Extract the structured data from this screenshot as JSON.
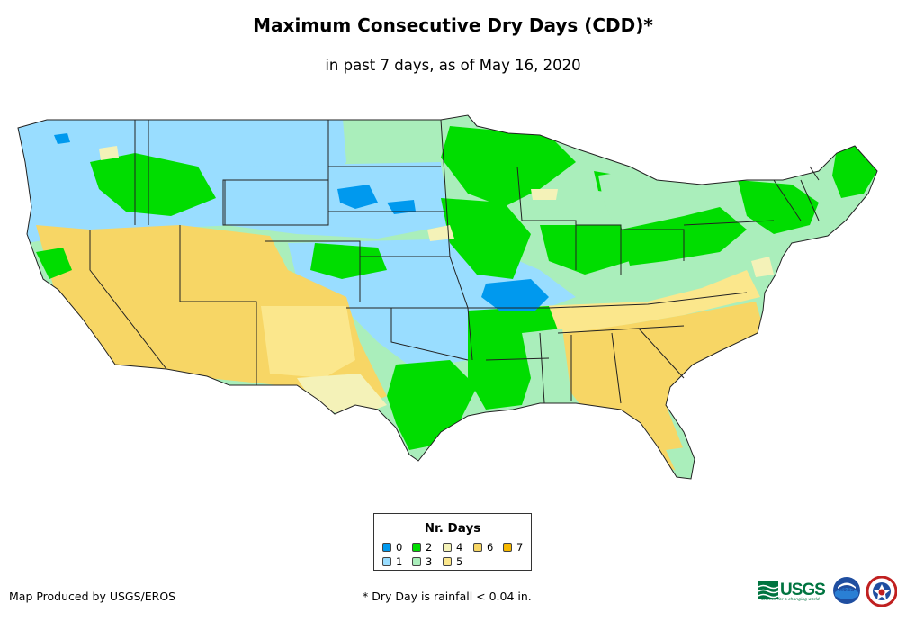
{
  "header": {
    "title": "Maximum Consecutive Dry Days (CDD)*",
    "subtitle": "in past 7 days, as of May 16, 2020"
  },
  "legend": {
    "title": "Nr. Days",
    "items": [
      {
        "label": "0",
        "color": "#0099ee"
      },
      {
        "label": "1",
        "color": "#99ddff"
      },
      {
        "label": "2",
        "color": "#00dd00"
      },
      {
        "label": "3",
        "color": "#aaeebb"
      },
      {
        "label": "4",
        "color": "#f4f2b8"
      },
      {
        "label": "5",
        "color": "#fbe78c"
      },
      {
        "label": "6",
        "color": "#f7d665"
      },
      {
        "label": "7",
        "color": "#f6b800"
      }
    ]
  },
  "footer": {
    "credit": "Map Produced by USGS/EROS",
    "footnote": "* Dry Day is rainfall < 0.04 in."
  },
  "logos": {
    "usgs": "USGS",
    "usgs_tagline": "science for a changing world",
    "noaa": "noaa"
  },
  "map": {
    "region": "Contiguous United States",
    "icons": [
      "usgs-logo",
      "noaa-logo",
      "nws-logo"
    ]
  }
}
